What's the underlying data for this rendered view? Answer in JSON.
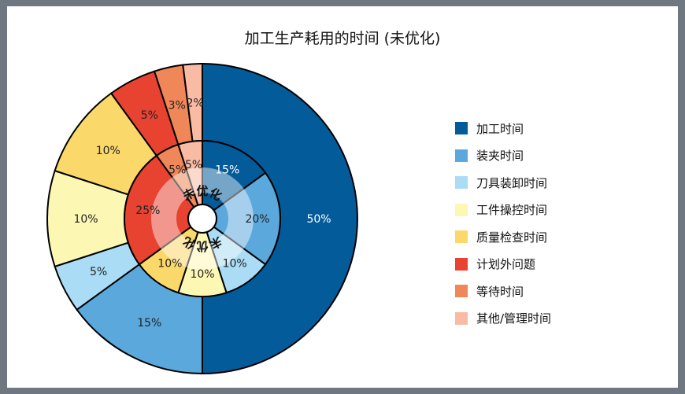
{
  "chart_data": {
    "type": "pie",
    "title": "加工生产耗用的时间 (未优化)",
    "categories": [
      "加工时间",
      "装夹时间",
      "刀具装卸时间",
      "工件操控时间",
      "质量检查时间",
      "计划外问题",
      "等待时间",
      "其他/管理时间"
    ],
    "colors": [
      "#045b9a",
      "#5ba8dc",
      "#abdcf5",
      "#fdf7b4",
      "#fbd86a",
      "#e84331",
      "#f08758",
      "#f9bba4"
    ],
    "series": [
      {
        "ring": "outer",
        "values": [
          50,
          15,
          5,
          10,
          10,
          5,
          3,
          2
        ]
      },
      {
        "ring": "inner",
        "values": [
          15,
          20,
          10,
          10,
          10,
          25,
          5,
          5
        ]
      }
    ],
    "center_label": "未优化",
    "legend_position": "right"
  }
}
